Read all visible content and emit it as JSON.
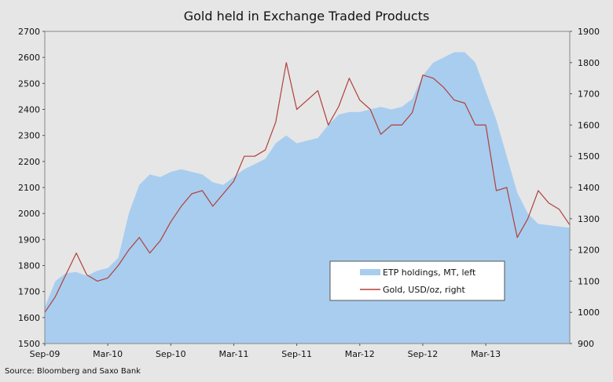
{
  "chart_data": {
    "type": "area",
    "title": "Gold held in Exchange Traded Products",
    "source": "Source: Bloomberg and Saxo Bank",
    "x_labels": [
      "Sep-09",
      "Mar-10",
      "Sep-10",
      "Mar-11",
      "Sep-11",
      "Mar-12",
      "Sep-12",
      "Mar-13"
    ],
    "x_range": [
      "2009-09",
      "2013-11"
    ],
    "y_left": {
      "label": "MT",
      "range": [
        1500,
        2700
      ],
      "ticks": [
        "1500",
        "1600",
        "1700",
        "1800",
        "1900",
        "2000",
        "2100",
        "2200",
        "2300",
        "2400",
        "2500",
        "2600",
        "2700"
      ]
    },
    "y_right": {
      "label": "USD/oz",
      "range": [
        900,
        1900
      ],
      "ticks": [
        "900",
        "1000",
        "1100",
        "1200",
        "1300",
        "1400",
        "1500",
        "1600",
        "1700",
        "1800",
        "1900"
      ]
    },
    "legend_placement": "bottom-right",
    "grid": false,
    "colors": {
      "etp_fill": "#a8cdef",
      "gold_line": "#b0403a",
      "background": "#e6e6e6"
    },
    "series": [
      {
        "name": "ETP holdings, MT, left",
        "axis": "left",
        "style": "area",
        "points": [
          [
            "2009-09",
            1640
          ],
          [
            "2009-10",
            1740
          ],
          [
            "2009-11",
            1770
          ],
          [
            "2009-12",
            1775
          ],
          [
            "2010-01",
            1760
          ],
          [
            "2010-02",
            1780
          ],
          [
            "2010-03",
            1790
          ],
          [
            "2010-04",
            1830
          ],
          [
            "2010-05",
            2000
          ],
          [
            "2010-06",
            2110
          ],
          [
            "2010-07",
            2150
          ],
          [
            "2010-08",
            2140
          ],
          [
            "2010-09",
            2160
          ],
          [
            "2010-10",
            2170
          ],
          [
            "2010-11",
            2160
          ],
          [
            "2010-12",
            2150
          ],
          [
            "2011-01",
            2120
          ],
          [
            "2011-02",
            2110
          ],
          [
            "2011-03",
            2140
          ],
          [
            "2011-04",
            2170
          ],
          [
            "2011-05",
            2190
          ],
          [
            "2011-06",
            2210
          ],
          [
            "2011-07",
            2270
          ],
          [
            "2011-08",
            2300
          ],
          [
            "2011-09",
            2270
          ],
          [
            "2011-10",
            2280
          ],
          [
            "2011-11",
            2290
          ],
          [
            "2011-12",
            2340
          ],
          [
            "2012-01",
            2380
          ],
          [
            "2012-02",
            2390
          ],
          [
            "2012-03",
            2390
          ],
          [
            "2012-04",
            2400
          ],
          [
            "2012-05",
            2410
          ],
          [
            "2012-06",
            2400
          ],
          [
            "2012-07",
            2410
          ],
          [
            "2012-08",
            2440
          ],
          [
            "2012-09",
            2530
          ],
          [
            "2012-10",
            2580
          ],
          [
            "2012-11",
            2600
          ],
          [
            "2012-12",
            2620
          ],
          [
            "2013-01",
            2620
          ],
          [
            "2013-02",
            2580
          ],
          [
            "2013-03",
            2470
          ],
          [
            "2013-04",
            2360
          ],
          [
            "2013-05",
            2220
          ],
          [
            "2013-06",
            2080
          ],
          [
            "2013-07",
            2000
          ],
          [
            "2013-08",
            1960
          ],
          [
            "2013-09",
            1955
          ],
          [
            "2013-10",
            1950
          ],
          [
            "2013-11",
            1945
          ]
        ]
      },
      {
        "name": "Gold, USD/oz, right",
        "axis": "right",
        "style": "line",
        "points": [
          [
            "2009-09",
            1000
          ],
          [
            "2009-10",
            1050
          ],
          [
            "2009-11",
            1120
          ],
          [
            "2009-12",
            1190
          ],
          [
            "2010-01",
            1120
          ],
          [
            "2010-02",
            1100
          ],
          [
            "2010-03",
            1110
          ],
          [
            "2010-04",
            1150
          ],
          [
            "2010-05",
            1200
          ],
          [
            "2010-06",
            1240
          ],
          [
            "2010-07",
            1190
          ],
          [
            "2010-08",
            1230
          ],
          [
            "2010-09",
            1290
          ],
          [
            "2010-10",
            1340
          ],
          [
            "2010-11",
            1380
          ],
          [
            "2010-12",
            1390
          ],
          [
            "2011-01",
            1340
          ],
          [
            "2011-02",
            1380
          ],
          [
            "2011-03",
            1420
          ],
          [
            "2011-04",
            1500
          ],
          [
            "2011-05",
            1500
          ],
          [
            "2011-06",
            1520
          ],
          [
            "2011-07",
            1610
          ],
          [
            "2011-08",
            1800
          ],
          [
            "2011-09",
            1650
          ],
          [
            "2011-10",
            1680
          ],
          [
            "2011-11",
            1710
          ],
          [
            "2011-12",
            1600
          ],
          [
            "2012-01",
            1660
          ],
          [
            "2012-02",
            1750
          ],
          [
            "2012-03",
            1680
          ],
          [
            "2012-04",
            1650
          ],
          [
            "2012-05",
            1570
          ],
          [
            "2012-06",
            1600
          ],
          [
            "2012-07",
            1600
          ],
          [
            "2012-08",
            1640
          ],
          [
            "2012-09",
            1760
          ],
          [
            "2012-10",
            1750
          ],
          [
            "2012-11",
            1720
          ],
          [
            "2012-12",
            1680
          ],
          [
            "2013-01",
            1670
          ],
          [
            "2013-02",
            1600
          ],
          [
            "2013-03",
            1600
          ],
          [
            "2013-04",
            1390
          ],
          [
            "2013-05",
            1400
          ],
          [
            "2013-06",
            1240
          ],
          [
            "2013-07",
            1300
          ],
          [
            "2013-08",
            1390
          ],
          [
            "2013-09",
            1350
          ],
          [
            "2013-10",
            1330
          ],
          [
            "2013-11",
            1280
          ]
        ]
      }
    ]
  }
}
